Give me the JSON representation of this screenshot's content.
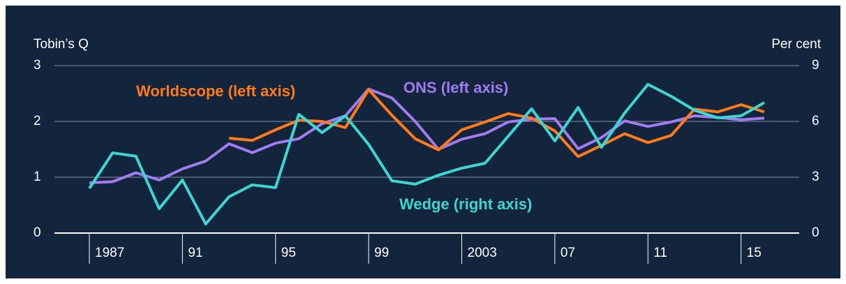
{
  "chart_data": {
    "type": "line",
    "ylabel": "Tobin’s Q",
    "y2label": "Per cent",
    "x": [
      1987,
      1988,
      1989,
      1990,
      1991,
      1992,
      1993,
      1994,
      1995,
      1996,
      1997,
      1998,
      1999,
      2000,
      2001,
      2002,
      2003,
      2004,
      2005,
      2006,
      2007,
      2008,
      2009,
      2010,
      2011,
      2012,
      2013,
      2014,
      2015,
      2016
    ],
    "xlim": [
      1985.5,
      2017.5
    ],
    "xticks": [
      1987,
      {
        "value": 1991,
        "label": "91"
      },
      {
        "value": 1995,
        "label": "95"
      },
      {
        "value": 1999,
        "label": "99"
      },
      2003,
      {
        "value": 2007,
        "label": "07"
      },
      {
        "value": 2011,
        "label": "11"
      },
      {
        "value": 2015,
        "label": "15"
      }
    ],
    "ylim": [
      0,
      3
    ],
    "yticks": [
      0,
      1,
      2,
      3
    ],
    "y2lim": [
      0,
      9
    ],
    "y2ticks": [
      0,
      3,
      6,
      9
    ],
    "grid": true,
    "series": [
      {
        "name": "ONS (left axis)",
        "color": "#a07cf0",
        "values": [
          0.9,
          0.92,
          1.08,
          0.95,
          1.15,
          1.29,
          1.6,
          1.44,
          1.61,
          1.69,
          1.96,
          2.1,
          2.58,
          2.42,
          2.0,
          1.5,
          1.68,
          1.78,
          1.99,
          2.04,
          2.05,
          1.51,
          1.71,
          2.01,
          1.91,
          1.99,
          2.1,
          2.07,
          2.03,
          2.06
        ]
      },
      {
        "name": "Worldscope (left axis)",
        "color": "#ff7a1a",
        "values": [
          null,
          null,
          null,
          null,
          null,
          null,
          1.7,
          1.66,
          1.85,
          2.02,
          2.0,
          1.89,
          2.57,
          2.11,
          1.69,
          1.49,
          1.85,
          1.99,
          2.14,
          2.06,
          1.83,
          1.37,
          1.57,
          1.78,
          1.62,
          1.75,
          2.22,
          2.17,
          2.3,
          2.17
        ]
      },
      {
        "name": "Wedge (right axis)",
        "color": "#3ed6d0",
        "axis": "y2",
        "values": [
          2.4,
          4.31,
          4.13,
          1.31,
          2.85,
          0.49,
          1.95,
          2.59,
          2.44,
          6.38,
          5.4,
          6.3,
          4.76,
          2.81,
          2.63,
          3.11,
          3.49,
          3.75,
          5.21,
          6.68,
          4.95,
          6.75,
          4.61,
          6.45,
          7.99,
          7.35,
          6.6,
          6.19,
          6.3,
          7.01
        ]
      }
    ]
  }
}
